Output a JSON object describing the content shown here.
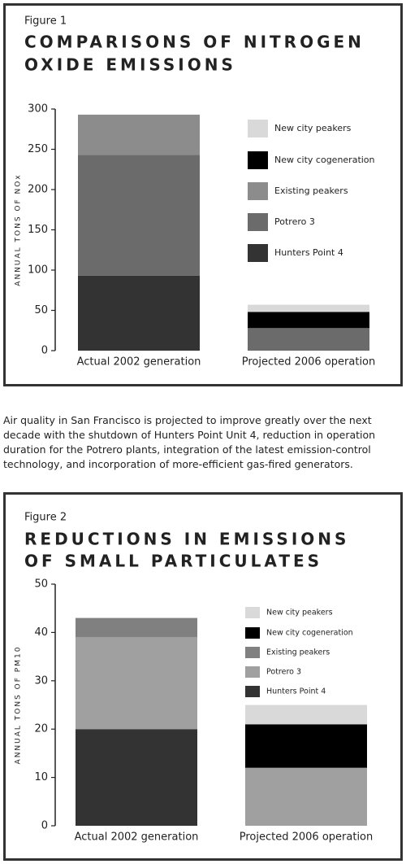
{
  "chart_data": [
    {
      "type": "stacked_bar",
      "figure_label": "Figure 1",
      "title": [
        "COMPARISONS OF NITROGEN",
        "OXIDE EMISSIONS"
      ],
      "ylabel": "ANNUAL TONS OF NOx",
      "categories": [
        "Actual 2002 generation",
        "Projected 2006 operation"
      ],
      "series": [
        {
          "name": "Hunters Point 4",
          "color": "#333333",
          "values": [
            93,
            0
          ]
        },
        {
          "name": "Potrero 3",
          "color": "#6b6b6b",
          "values": [
            150,
            28
          ]
        },
        {
          "name": "Existing peakers",
          "color": "#8c8c8c",
          "values": [
            50,
            0
          ]
        },
        {
          "name": "New city cogeneration",
          "color": "#000000",
          "values": [
            0,
            20
          ]
        },
        {
          "name": "New city peakers",
          "color": "#d9d9d9",
          "values": [
            0,
            9
          ]
        }
      ],
      "ylim": [
        0,
        300
      ],
      "yticks": [
        0,
        50,
        100,
        150,
        200,
        250,
        300
      ]
    },
    {
      "type": "stacked_bar",
      "figure_label": "Figure 2",
      "title": [
        "REDUCTIONS IN EMISSIONS",
        "OF SMALL PARTICULATES"
      ],
      "ylabel": "ANNUAL TONS OF PM10",
      "categories": [
        "Actual 2002 generation",
        "Projected 2006 operation"
      ],
      "series": [
        {
          "name": "Hunters Point 4",
          "color": "#333333",
          "values": [
            20,
            0
          ]
        },
        {
          "name": "Potrero 3",
          "color": "#a0a0a0",
          "values": [
            19,
            12
          ]
        },
        {
          "name": "Existing peakers",
          "color": "#808080",
          "values": [
            4,
            0
          ]
        },
        {
          "name": "New city cogeneration",
          "color": "#000000",
          "values": [
            0,
            9
          ]
        },
        {
          "name": "New city peakers",
          "color": "#d9d9d9",
          "values": [
            0,
            4
          ]
        }
      ],
      "ylim": [
        0,
        50
      ],
      "yticks": [
        0,
        10,
        20,
        30,
        40,
        50
      ]
    }
  ],
  "caption": "Air quality in San Francisco is projected to improve greatly over the next decade with the shutdown of Hunters Point Unit 4, reduction in operation duration for the Potrero plants, integration of the latest emission-control technology, and incorporation of more-efficient gas-fired generators."
}
